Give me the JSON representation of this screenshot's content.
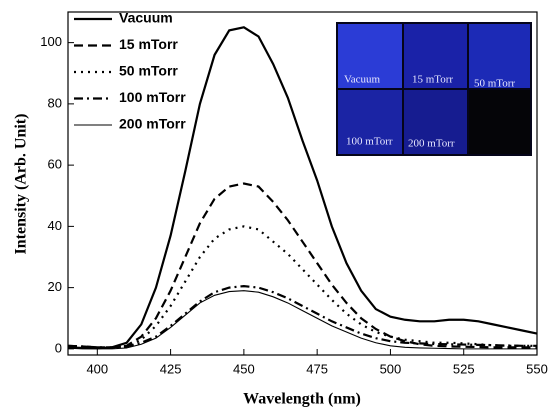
{
  "chart_data": {
    "type": "line",
    "x_label": "Wavelength (nm)",
    "y_label": "Intensity (Arb. Unit)",
    "x": [
      390,
      395,
      400,
      405,
      410,
      415,
      420,
      425,
      430,
      435,
      440,
      445,
      450,
      455,
      460,
      465,
      470,
      475,
      480,
      485,
      490,
      495,
      500,
      505,
      510,
      515,
      520,
      525,
      530,
      535,
      540,
      545,
      550
    ],
    "series": [
      {
        "name": "Vacuum",
        "color": "#000000",
        "dash": "",
        "width": 2.2,
        "values": [
          0.5,
          0.3,
          0.2,
          0.5,
          2,
          8,
          20,
          37,
          58,
          80,
          96,
          104,
          105,
          102,
          93,
          82,
          68,
          55,
          40,
          28,
          19,
          13,
          10.5,
          9.5,
          9,
          9,
          9.5,
          9.5,
          9,
          8,
          7,
          6,
          5
        ]
      },
      {
        "name": "15 mTorr",
        "color": "#000000",
        "dash": "9,5",
        "width": 2.2,
        "values": [
          1,
          0.8,
          0.5,
          0.5,
          1,
          4,
          10,
          19,
          30,
          41,
          49,
          53,
          54,
          53,
          48,
          42,
          35,
          28,
          21,
          15,
          10,
          6.5,
          4,
          2.5,
          1.5,
          1,
          0.8,
          0.7,
          0.6,
          0.5,
          0.5,
          0.5,
          0.5
        ]
      },
      {
        "name": "50 mTorr",
        "color": "#000000",
        "dash": "2,5",
        "width": 2.2,
        "values": [
          0.5,
          0.4,
          0.3,
          0.3,
          0.8,
          3,
          7.5,
          14,
          22,
          30,
          36,
          39,
          40,
          39,
          35,
          31,
          26,
          21,
          16,
          11.5,
          8,
          5.5,
          4,
          3,
          2.5,
          2,
          2,
          1.8,
          1.5,
          1.2,
          1,
          1,
          1
        ]
      },
      {
        "name": "100 mTorr",
        "color": "#000000",
        "dash": "9,4,2,4",
        "width": 2.2,
        "values": [
          1,
          0.8,
          0.5,
          0.5,
          0.8,
          2,
          4,
          7.5,
          11.5,
          15.5,
          18.5,
          20,
          20.5,
          20,
          18.5,
          16.5,
          14,
          11.5,
          9,
          7,
          5,
          3.5,
          2.5,
          2,
          1.8,
          1.6,
          1.5,
          1.4,
          1.3,
          1.2,
          1.1,
          1,
          1
        ]
      },
      {
        "name": "200 mTorr",
        "color": "#000000",
        "dash": "",
        "width": 1.1,
        "values": [
          0.2,
          0,
          0,
          0,
          0.3,
          1.5,
          3.5,
          7,
          11,
          15,
          17.5,
          18.7,
          19,
          18.5,
          17,
          15,
          12.5,
          10,
          7.5,
          5.5,
          3.5,
          2,
          1,
          0.5,
          0.3,
          0.2,
          0.1,
          0,
          0,
          0,
          0,
          0,
          0
        ]
      }
    ],
    "xlim": [
      390,
      550
    ],
    "xticks": [
      400,
      425,
      450,
      475,
      500,
      525,
      550
    ],
    "ylim": [
      -2,
      110
    ],
    "yticks": [
      0,
      20,
      40,
      60,
      80,
      100
    ],
    "legend": "upper left",
    "inset_labels": [
      "Vacuum",
      "15 mTorr",
      "50 mTorr",
      "100 mTorr",
      "200 mTorr"
    ]
  }
}
